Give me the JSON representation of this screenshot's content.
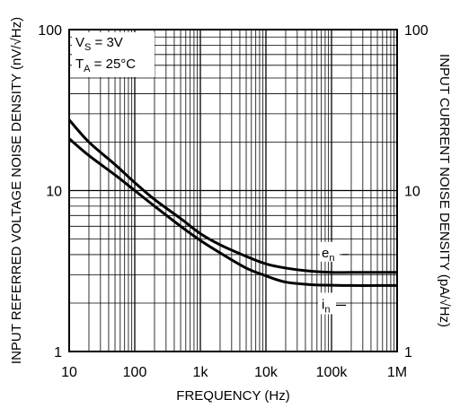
{
  "chart_data": {
    "type": "line",
    "title": "",
    "xlabel": "FREQUENCY (Hz)",
    "ylabel_left": "INPUT REFERRED VOLTAGE NOISE DENSITY (nV/√Hz)",
    "ylabel_right": "INPUT CURRENT NOISE DENSITY (pA/√Hz)",
    "x_scale": "log",
    "y_scale": "log",
    "xlim": [
      10,
      1000000
    ],
    "ylim": [
      1,
      100
    ],
    "ylim_right": [
      1,
      100
    ],
    "grid": true,
    "x_tick_labels": [
      "10",
      "100",
      "1k",
      "10k",
      "100k",
      "1M"
    ],
    "y_tick_labels_left": [
      "1",
      "10",
      "100"
    ],
    "y_tick_labels_right": [
      "1",
      "10",
      "100"
    ],
    "conditions": {
      "vs": {
        "main": "V",
        "sub": "S",
        "rest": " = 3V"
      },
      "ta": {
        "main": "T",
        "sub": "A",
        "rest": " = 25°C"
      }
    },
    "series": [
      {
        "name": "en",
        "label_main": "e",
        "label_sub": "n",
        "x": [
          10,
          20,
          50,
          100,
          200,
          500,
          1000,
          2000,
          5000,
          10000,
          20000,
          50000,
          100000,
          200000,
          500000,
          1000000
        ],
        "y": [
          27.5,
          20,
          14.5,
          11.2,
          8.8,
          6.7,
          5.4,
          4.6,
          3.9,
          3.5,
          3.3,
          3.15,
          3.1,
          3.1,
          3.1,
          3.1
        ]
      },
      {
        "name": "in",
        "label_main": "i",
        "label_sub": "n",
        "x": [
          10,
          20,
          50,
          100,
          200,
          500,
          1000,
          2000,
          5000,
          10000,
          20000,
          50000,
          100000,
          200000,
          500000,
          1000000
        ],
        "y": [
          21,
          16.5,
          12.5,
          10,
          8,
          6,
          4.9,
          4.1,
          3.3,
          2.95,
          2.7,
          2.6,
          2.58,
          2.57,
          2.57,
          2.57
        ]
      }
    ]
  }
}
